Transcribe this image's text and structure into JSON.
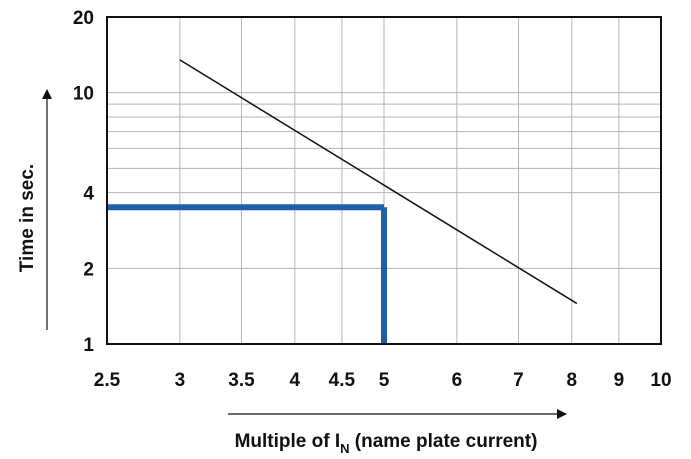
{
  "chart_data": {
    "type": "line",
    "title": "",
    "x_scale": "log",
    "y_scale": "log",
    "xlim": [
      2.5,
      10
    ],
    "ylim": [
      1,
      20
    ],
    "grid": true,
    "x_ticks": [
      2.5,
      3,
      3.5,
      4,
      4.5,
      5,
      6,
      7,
      8,
      9,
      10
    ],
    "x_tick_labels": [
      "2.5",
      "3",
      "3.5",
      "4",
      "4.5",
      "5",
      "6",
      "7",
      "8",
      "9",
      "10"
    ],
    "y_ticks": [
      1,
      2,
      4,
      10,
      20
    ],
    "y_tick_labels": [
      "1",
      "2",
      "4",
      "10",
      "20"
    ],
    "y_minor_gridlines": [
      5,
      6,
      7,
      8,
      9
    ],
    "xlabel": {
      "prefix": "Multiple of I",
      "subscript": "N",
      "suffix": " (name plate current)"
    },
    "ylabel": "Time in sec.",
    "series": [
      {
        "x": [
          3,
          8.1
        ],
        "y": [
          13.5,
          1.45
        ]
      }
    ],
    "highlight": {
      "x": 5,
      "y": 3.5,
      "color": "#1f5fa8"
    }
  }
}
